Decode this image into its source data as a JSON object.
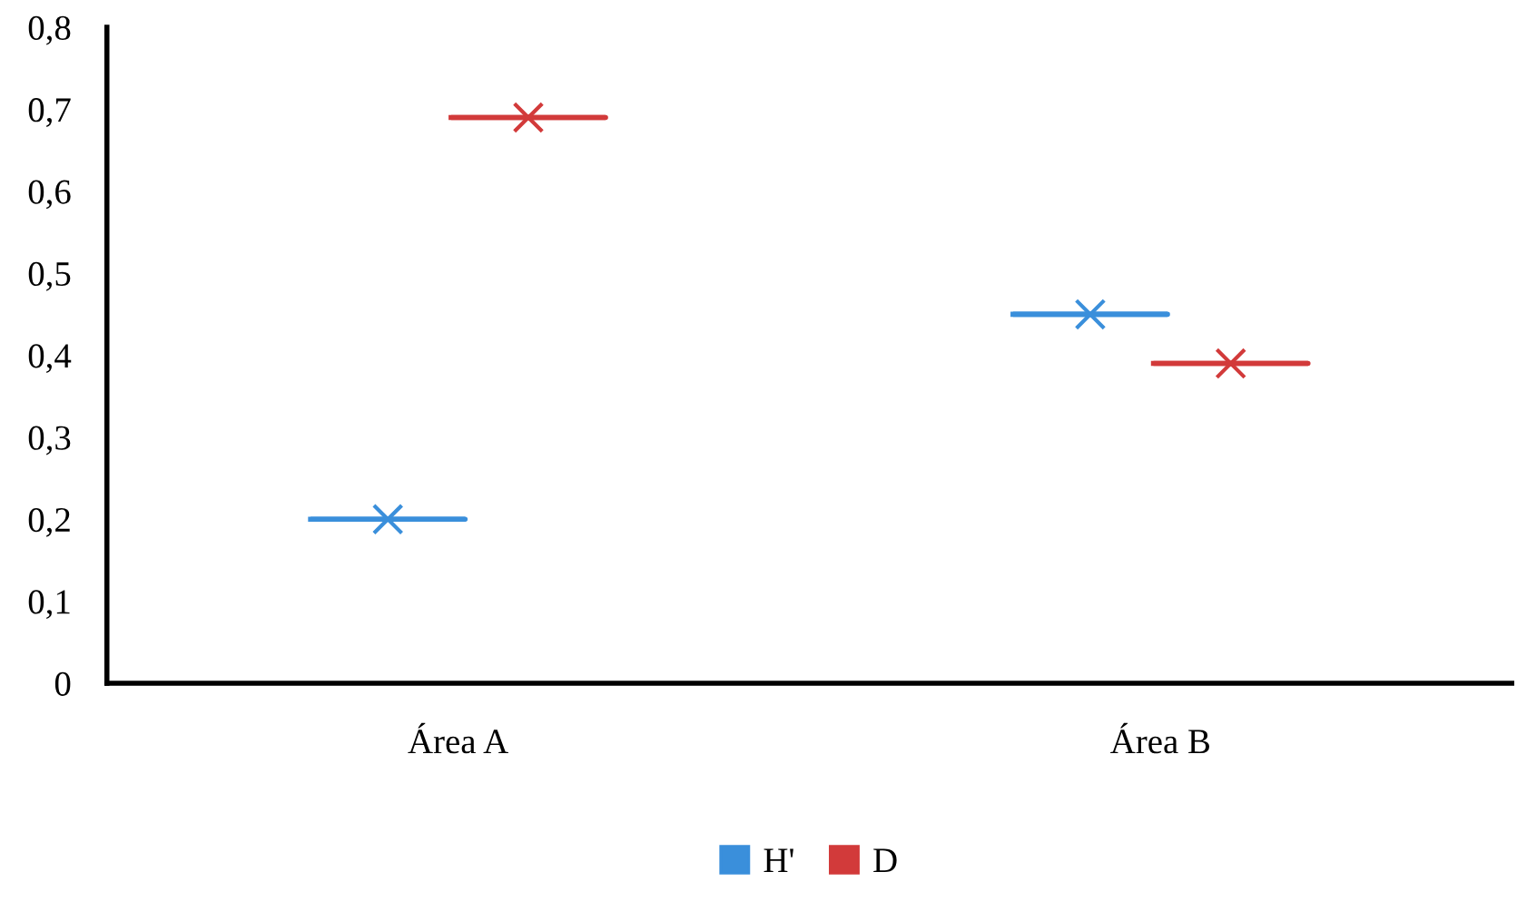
{
  "chart_data": {
    "type": "box",
    "categories": [
      "Área A",
      "Área B"
    ],
    "series": [
      {
        "name": "H'",
        "color": "#3a8fdb",
        "boxes": [
          {
            "low": 0.2,
            "q1": 0.2,
            "median": 0.2,
            "q3": 0.2,
            "high": 0.2,
            "mean": 0.2
          },
          {
            "low": 0.45,
            "q1": 0.45,
            "median": 0.45,
            "q3": 0.45,
            "high": 0.45,
            "mean": 0.45
          }
        ]
      },
      {
        "name": "D",
        "color": "#d23a3a",
        "boxes": [
          {
            "low": 0.69,
            "q1": 0.69,
            "median": 0.69,
            "q3": 0.69,
            "high": 0.69,
            "mean": 0.69
          },
          {
            "low": 0.39,
            "q1": 0.39,
            "median": 0.39,
            "q3": 0.39,
            "high": 0.39,
            "mean": 0.39
          }
        ]
      }
    ],
    "ylim": [
      0,
      0.8
    ],
    "yticks": [
      0,
      {
        "value": 0.1,
        "label": "0,1"
      },
      {
        "value": 0.2,
        "label": "0,2"
      },
      {
        "value": 0.3,
        "label": "0,3"
      },
      {
        "value": 0.4,
        "label": "0,4"
      },
      {
        "value": 0.5,
        "label": "0,5"
      },
      {
        "value": 0.6,
        "label": "0,6"
      },
      {
        "value": 0.7,
        "label": "0,7"
      },
      {
        "value": 0.8,
        "label": "0,8"
      }
    ],
    "marker": "cross",
    "grid": false,
    "legend": "bottom"
  }
}
